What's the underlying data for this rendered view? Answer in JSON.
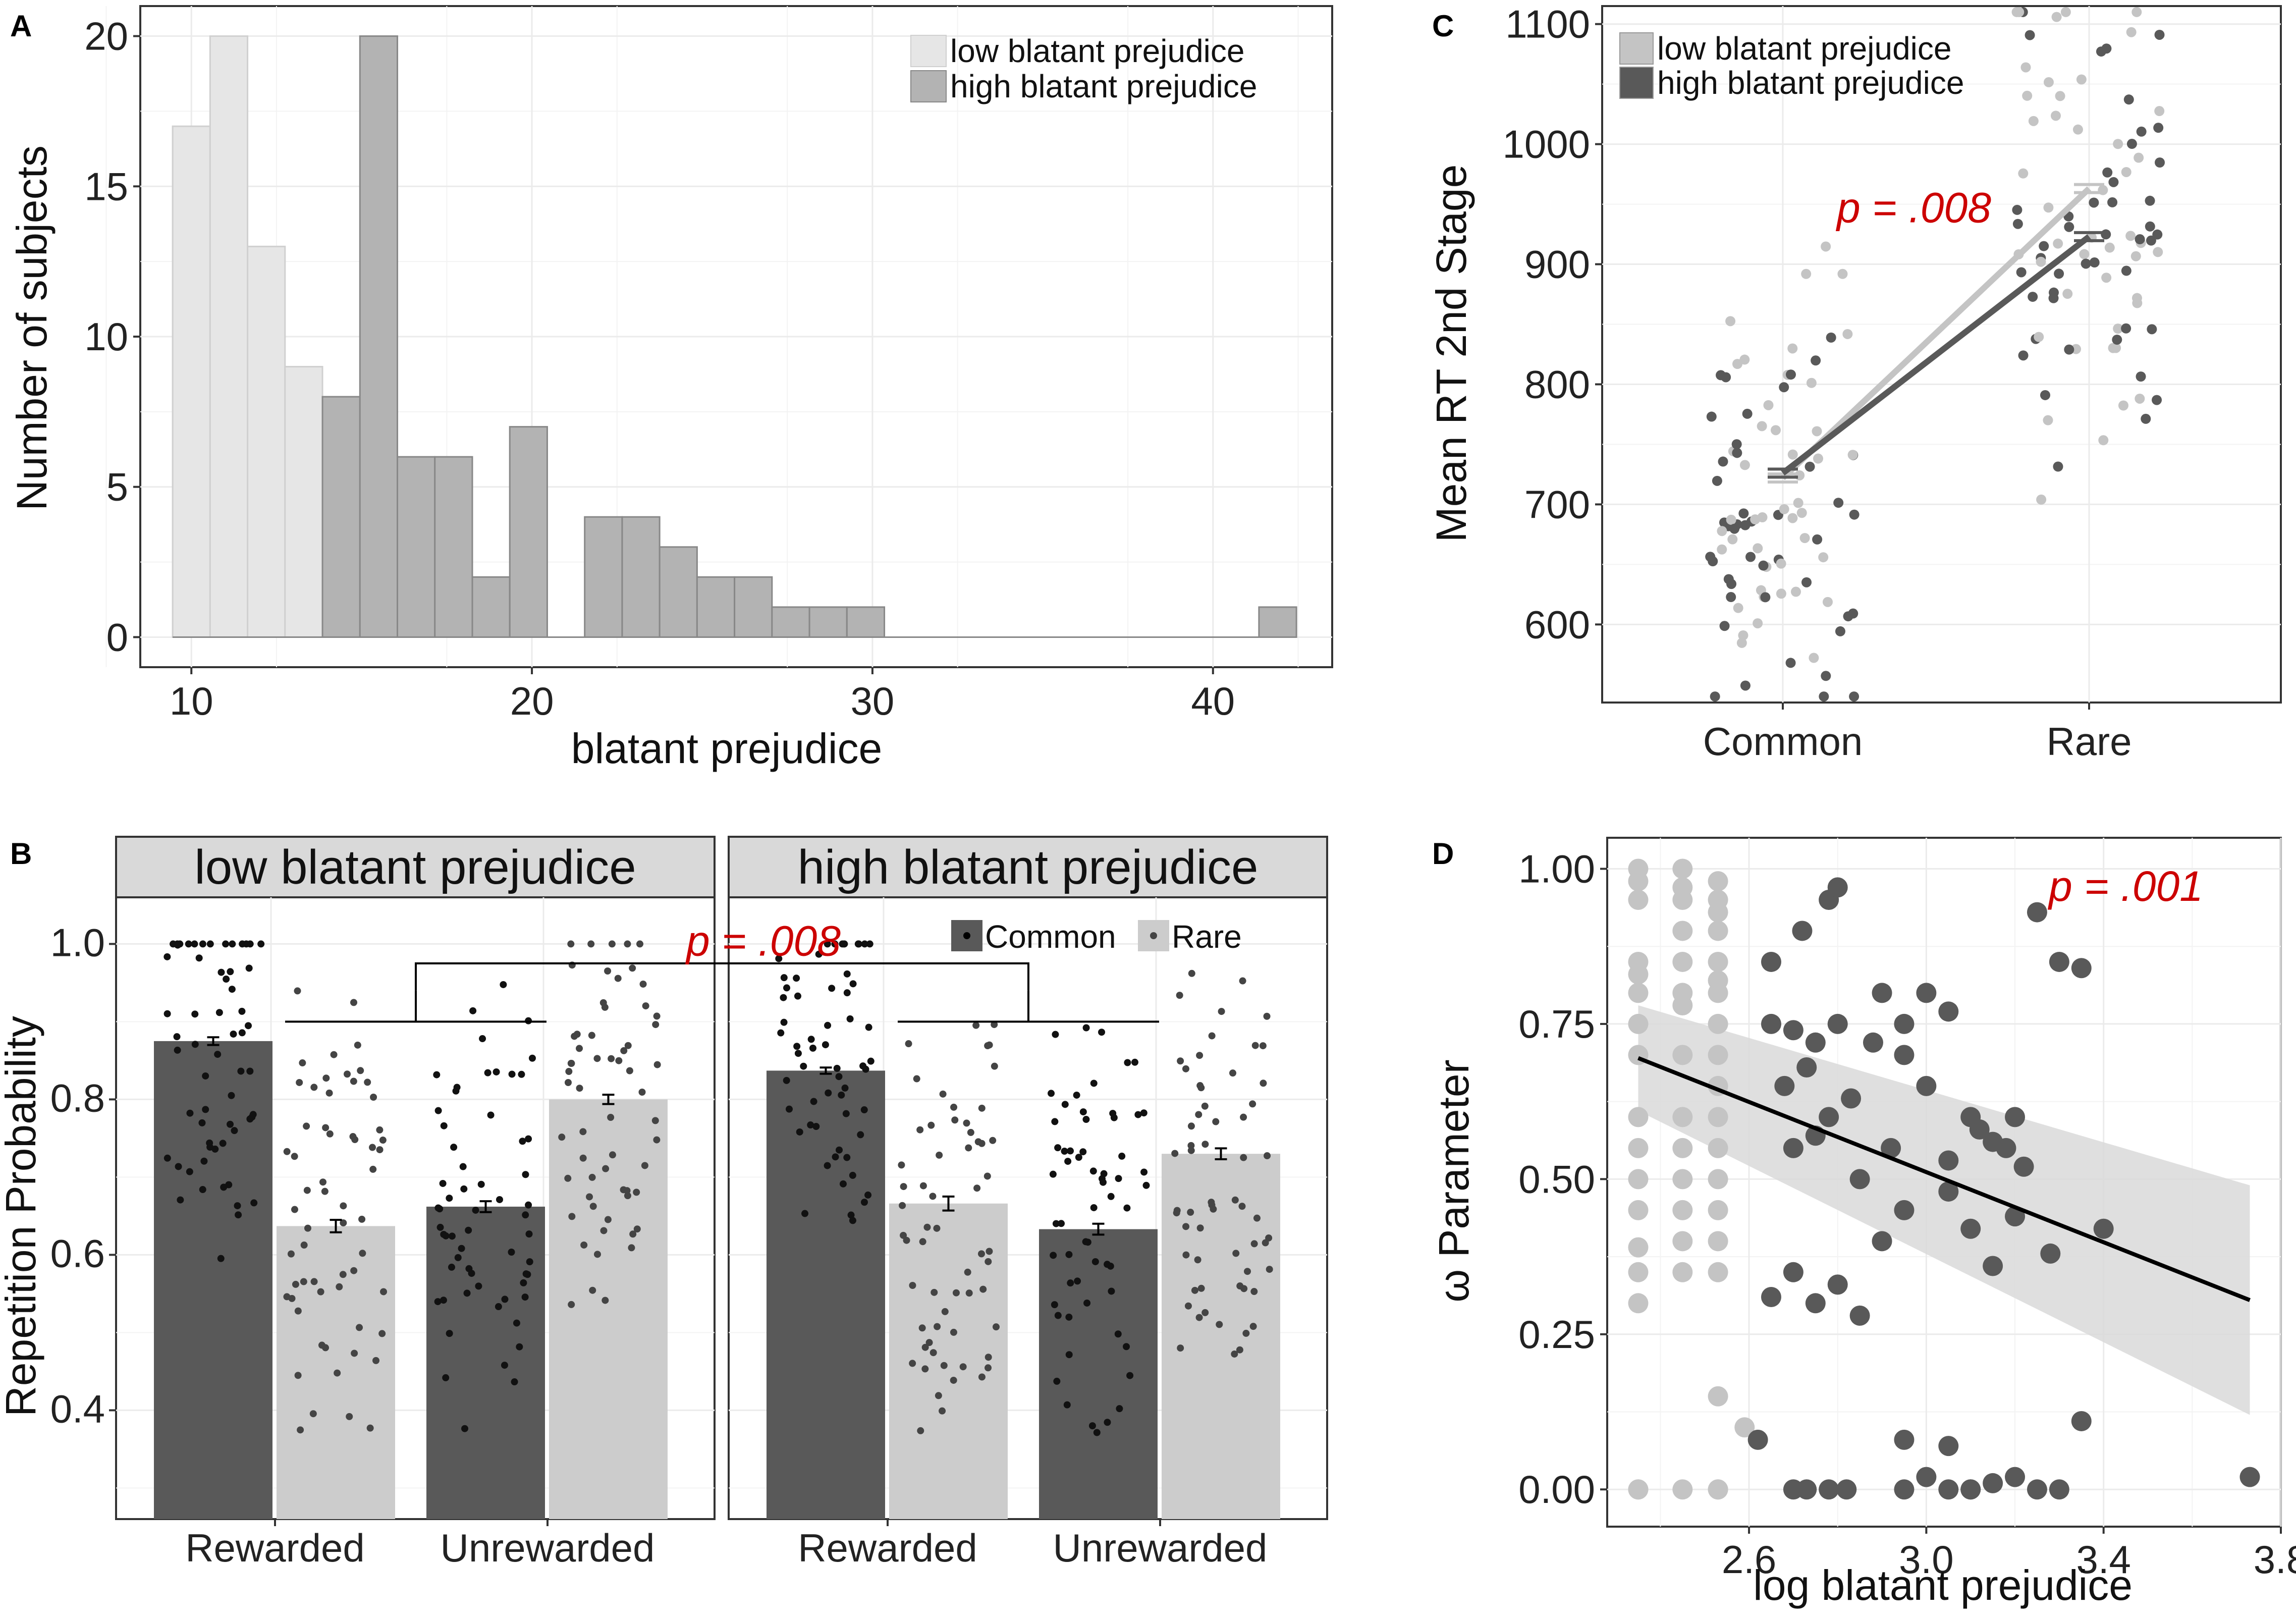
{
  "chart_data": [
    {
      "panel": "A",
      "type": "bar",
      "xlabel": "blatant prejudice",
      "ylabel": "Number of subjects",
      "xlim": [
        8.5,
        43.5
      ],
      "ylim": [
        -1,
        21
      ],
      "x_ticks": [
        10,
        20,
        30,
        40
      ],
      "y_ticks": [
        0,
        5,
        10,
        15,
        20
      ],
      "binwidth": 1.1,
      "legend": [
        "low blatant prejudice",
        "high blatant prejudice"
      ],
      "colors": {
        "low": "#e6e6e6",
        "high": "#b3b3b3",
        "edge": "#888888"
      },
      "series": [
        {
          "name": "low blatant prejudice",
          "x": [
            10.0,
            11.1,
            12.2,
            13.3
          ],
          "values": [
            17,
            20,
            13,
            9
          ]
        },
        {
          "name": "high blatant prejudice",
          "x": [
            14.4,
            15.5,
            16.6,
            17.7,
            18.8,
            19.9,
            21.0,
            22.1,
            23.2,
            24.3,
            25.4,
            26.5,
            27.6,
            28.7,
            29.8,
            41.9
          ],
          "values": [
            8,
            20,
            6,
            6,
            2,
            7,
            0,
            4,
            4,
            3,
            2,
            2,
            1,
            1,
            1,
            1
          ]
        }
      ]
    },
    {
      "panel": "B",
      "type": "bar",
      "ylabel": "Repetition Probability",
      "ylim": [
        0.26,
        1.06
      ],
      "y_ticks": [
        "0.4",
        "0.6",
        "0.8",
        "1.0"
      ],
      "facets": [
        "low blatant prejudice",
        "high blatant prejudice"
      ],
      "categories": [
        "Rewarded",
        "Unrewarded"
      ],
      "legend": [
        "Common",
        "Rare"
      ],
      "colors": {
        "Common": "#595959",
        "Rare": "#cccccc"
      },
      "series": [
        {
          "facet": "low blatant prejudice",
          "name": "Common",
          "values": [
            0.875,
            0.662
          ],
          "se": [
            0.005,
            0.007
          ]
        },
        {
          "facet": "low blatant prejudice",
          "name": "Rare",
          "values": [
            0.637,
            0.8
          ],
          "se": [
            0.008,
            0.006
          ]
        },
        {
          "facet": "high blatant prejudice",
          "name": "Common",
          "values": [
            0.837,
            0.633
          ],
          "se": [
            0.004,
            0.007
          ]
        },
        {
          "facet": "high blatant prejudice",
          "name": "Rare",
          "values": [
            0.666,
            0.73
          ],
          "se": [
            0.009,
            0.007
          ]
        }
      ],
      "annotation": "p = .008"
    },
    {
      "panel": "C",
      "type": "line",
      "xlabel": "",
      "ylabel": "Mean RT 2nd Stage",
      "categories": [
        "Common",
        "Rare"
      ],
      "ylim": [
        535,
        1115
      ],
      "y_ticks": [
        600,
        700,
        800,
        900,
        1000,
        1100
      ],
      "legend": [
        "low blatant prejudice",
        "high blatant prejudice"
      ],
      "colors": {
        "low": "#c4c4c4",
        "high": "#595959"
      },
      "series": [
        {
          "name": "low blatant prejudice",
          "values": [
            722,
            963
          ]
        },
        {
          "name": "high blatant prejudice",
          "values": [
            726,
            923
          ]
        }
      ],
      "annotation": "p = .008"
    },
    {
      "panel": "D",
      "type": "scatter",
      "xlabel": "log blatant prejudice",
      "ylabel": "ω Parameter",
      "xlim": [
        2.28,
        3.8
      ],
      "ylim": [
        -0.06,
        1.05
      ],
      "x_ticks": [
        "2.6",
        "3.0",
        "3.4",
        "3.8"
      ],
      "y_ticks": [
        "0.00",
        "0.25",
        "0.50",
        "0.75",
        "1.00"
      ],
      "colors": {
        "low": "#c4c4c4",
        "high": "#595959",
        "fit": "#000000",
        "band": "#d9d9d9"
      },
      "fit_line": {
        "x": [
          2.35,
          3.73
        ],
        "y": [
          0.695,
          0.305
        ]
      },
      "confidence_band": {
        "x": [
          2.35,
          3.73
        ],
        "upper": [
          0.78,
          0.49
        ],
        "lower": [
          0.61,
          0.12
        ]
      },
      "series": [
        {
          "name": "low blatant prejudice",
          "x": [
            2.35,
            2.35,
            2.35,
            2.35,
            2.35,
            2.35,
            2.35,
            2.35,
            2.35,
            2.35,
            2.35,
            2.35,
            2.35,
            2.35,
            2.35,
            2.35,
            2.45,
            2.45,
            2.45,
            2.45,
            2.45,
            2.45,
            2.45,
            2.45,
            2.45,
            2.45,
            2.45,
            2.45,
            2.45,
            2.45,
            2.53,
            2.53,
            2.53,
            2.53,
            2.53,
            2.53,
            2.53,
            2.53,
            2.53,
            2.53,
            2.53,
            2.53,
            2.53,
            2.53,
            2.53,
            2.53,
            2.53,
            2.53,
            2.35,
            2.45,
            2.53,
            2.59
          ],
          "y": [
            1.0,
            0.98,
            0.95,
            0.85,
            0.83,
            0.8,
            0.75,
            0.7,
            0.6,
            0.55,
            0.5,
            0.45,
            0.39,
            0.35,
            0.3,
            0.0,
            1.0,
            0.97,
            0.95,
            0.9,
            0.85,
            0.8,
            0.78,
            0.7,
            0.6,
            0.55,
            0.5,
            0.45,
            0.4,
            0.35,
            0.98,
            0.95,
            0.93,
            0.9,
            0.85,
            0.82,
            0.8,
            0.75,
            0.7,
            0.65,
            0.6,
            0.55,
            0.5,
            0.45,
            0.4,
            0.35,
            0.15,
            0.0,
            0.0,
            0.0,
            0.0,
            0.1
          ]
        },
        {
          "name": "high blatant prejudice",
          "x": [
            2.65,
            2.72,
            2.78,
            2.8,
            2.65,
            2.7,
            2.75,
            2.8,
            2.9,
            2.95,
            3.0,
            3.05,
            2.68,
            2.73,
            2.78,
            2.83,
            2.88,
            2.95,
            3.0,
            3.1,
            3.15,
            3.2,
            3.25,
            2.7,
            2.75,
            2.85,
            2.92,
            3.05,
            3.12,
            3.18,
            3.22,
            3.3,
            3.35,
            2.65,
            2.7,
            2.9,
            2.95,
            3.05,
            3.1,
            3.15,
            3.2,
            3.28,
            3.4,
            3.35,
            2.75,
            2.8,
            2.85,
            2.95,
            3.05,
            3.1,
            3.2,
            3.25,
            2.62,
            2.7,
            2.73,
            2.78,
            2.82,
            2.95,
            3.0,
            3.05,
            3.1,
            3.15,
            3.3,
            3.73
          ],
          "y": [
            0.85,
            0.9,
            0.95,
            0.97,
            0.75,
            0.74,
            0.72,
            0.75,
            0.8,
            0.75,
            0.8,
            0.77,
            0.65,
            0.68,
            0.6,
            0.63,
            0.72,
            0.7,
            0.65,
            0.6,
            0.56,
            0.6,
            0.93,
            0.55,
            0.57,
            0.5,
            0.55,
            0.53,
            0.58,
            0.55,
            0.52,
            0.85,
            0.84,
            0.31,
            0.35,
            0.4,
            0.45,
            0.48,
            0.42,
            0.36,
            0.44,
            0.38,
            0.42,
            0.11,
            0.3,
            0.33,
            0.28,
            0.08,
            0.07,
            0.0,
            0.02,
            0.0,
            0.08,
            0.0,
            0.0,
            0.0,
            0.0,
            0.0,
            0.02,
            0.0,
            0.0,
            0.01,
            0.0,
            0.02
          ]
        }
      ],
      "annotation": "p = .001"
    }
  ]
}
